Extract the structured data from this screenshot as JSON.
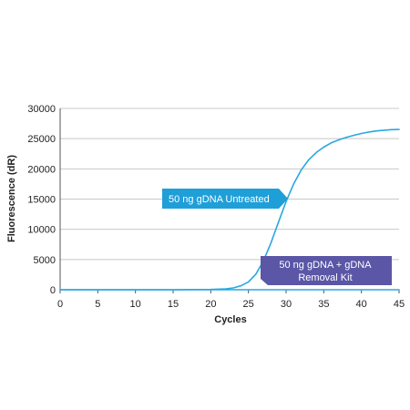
{
  "chart_data": {
    "type": "line",
    "xlabel": "Cycles",
    "ylabel": "Fluorescence (dR)",
    "xlim": [
      0,
      45
    ],
    "ylim": [
      0,
      30000
    ],
    "x_ticks": [
      0,
      5,
      10,
      15,
      20,
      25,
      30,
      35,
      40,
      45
    ],
    "y_ticks": [
      0,
      5000,
      10000,
      15000,
      20000,
      25000,
      30000
    ],
    "grid": "horizontal",
    "series": [
      {
        "color": "#29a8df",
        "x": [
          0,
          5,
          10,
          15,
          20,
          22,
          23,
          24,
          25,
          26,
          27,
          28,
          29,
          30,
          31,
          32,
          33,
          34,
          35,
          36,
          37,
          38,
          39,
          40,
          41,
          42,
          43,
          44,
          45
        ],
        "y": [
          0,
          0,
          0,
          0,
          50,
          150,
          300,
          650,
          1300,
          2600,
          4800,
          7800,
          11200,
          14600,
          17500,
          19800,
          21500,
          22700,
          23600,
          24300,
          24800,
          25200,
          25550,
          25850,
          26100,
          26280,
          26400,
          26480,
          26520
        ]
      },
      {
        "color": "#29a8df",
        "x": [
          0,
          5,
          10,
          15,
          20,
          25,
          30,
          35,
          40,
          45
        ],
        "y": [
          0,
          0,
          0,
          0,
          0,
          0,
          0,
          0,
          0,
          0
        ]
      }
    ],
    "annotations": [
      {
        "text": "50 ng gDNA Untreated",
        "color": "#1f9fd8"
      },
      {
        "lines": [
          "50 ng gDNA + gDNA",
          "Removal Kit"
        ],
        "color": "#5b56a6"
      }
    ]
  }
}
